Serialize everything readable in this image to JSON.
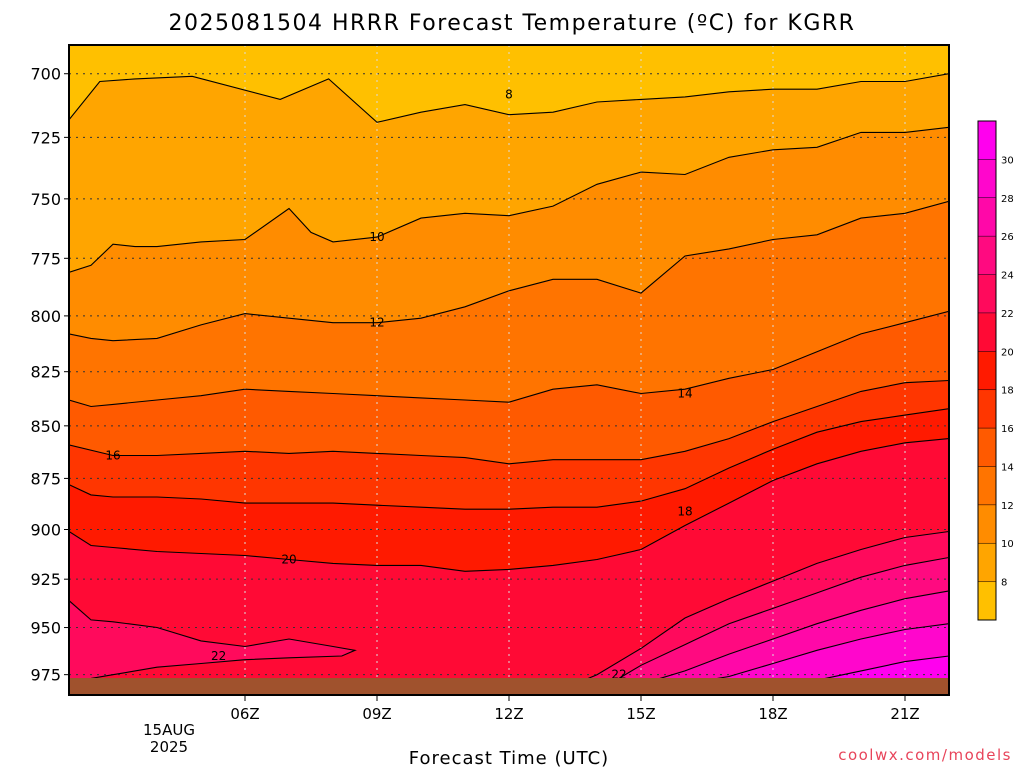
{
  "chart_data": {
    "type": "contour",
    "title": "2025081504 HRRR Forecast Temperature (ºC) for KGRR",
    "xlabel": "Forecast Time (UTC)",
    "ylabel": "",
    "credit": "coolwx.com/models",
    "x_range_hours_utc": [
      2,
      22
    ],
    "y_range_hpa": [
      689,
      986
    ],
    "y_axis": "pressure (hPa), inverted, log-p",
    "grid": "dotted",
    "y_ticks": [
      700,
      725,
      750,
      775,
      800,
      825,
      850,
      875,
      900,
      925,
      950,
      975
    ],
    "x_ticks": [
      {
        "hour": 6,
        "label": "06Z"
      },
      {
        "hour": 9,
        "label": "09Z"
      },
      {
        "hour": 12,
        "label": "12Z"
      },
      {
        "hour": 15,
        "label": "15Z"
      },
      {
        "hour": 18,
        "label": "18Z"
      },
      {
        "hour": 21,
        "label": "21Z"
      }
    ],
    "date_label": [
      "15AUG",
      "2025"
    ],
    "colorbar": {
      "levels": [
        8,
        10,
        12,
        14,
        16,
        18,
        20,
        22,
        24,
        26,
        28,
        30
      ],
      "colors": [
        "#ffc000",
        "#ffa500",
        "#ff8c00",
        "#ff7400",
        "#ff5a00",
        "#ff3600",
        "#ff1a00",
        "#ff0a35",
        "#ff0a5c",
        "#ff0a80",
        "#ff08a8",
        "#ff06cc",
        "#ff00ee"
      ]
    },
    "ground_color": "#a0522d",
    "contours": [
      {
        "value": 8,
        "label_at": [
          12.0,
          708
        ],
        "points": [
          [
            2,
            718
          ],
          [
            2.7,
            703
          ],
          [
            3.5,
            702
          ],
          [
            4.8,
            701
          ],
          [
            6.8,
            710
          ],
          [
            7.9,
            702
          ],
          [
            9.0,
            719
          ],
          [
            10.0,
            715
          ],
          [
            11.0,
            712
          ],
          [
            12.0,
            716
          ],
          [
            13.0,
            715
          ],
          [
            14.0,
            711
          ],
          [
            15.0,
            710
          ],
          [
            16.0,
            709
          ],
          [
            17.0,
            707
          ],
          [
            18.0,
            706
          ],
          [
            19.0,
            706
          ],
          [
            20.0,
            703
          ],
          [
            21.0,
            703
          ],
          [
            22,
            700
          ]
        ]
      },
      {
        "value": 10,
        "label_at": [
          9.0,
          766
        ],
        "points": [
          [
            2,
            781
          ],
          [
            2.5,
            778
          ],
          [
            3,
            769
          ],
          [
            3.5,
            770
          ],
          [
            4,
            770
          ],
          [
            5,
            768
          ],
          [
            6,
            767
          ],
          [
            7,
            754
          ],
          [
            7.5,
            764
          ],
          [
            8,
            768
          ],
          [
            9,
            766
          ],
          [
            10,
            758
          ],
          [
            11,
            756
          ],
          [
            12,
            757
          ],
          [
            13,
            753
          ],
          [
            14,
            744
          ],
          [
            15,
            739
          ],
          [
            16,
            740
          ],
          [
            17,
            733
          ],
          [
            18,
            730
          ],
          [
            19,
            729
          ],
          [
            20,
            723
          ],
          [
            21,
            723
          ],
          [
            22,
            721
          ]
        ]
      },
      {
        "value": 12,
        "label_at": [
          9.0,
          803
        ],
        "points": [
          [
            2,
            808
          ],
          [
            2.5,
            810
          ],
          [
            3,
            811
          ],
          [
            4,
            810
          ],
          [
            5,
            804
          ],
          [
            6,
            799
          ],
          [
            7,
            801
          ],
          [
            8,
            803
          ],
          [
            9,
            803
          ],
          [
            10,
            801
          ],
          [
            11,
            796
          ],
          [
            12,
            789
          ],
          [
            13,
            784
          ],
          [
            14,
            784
          ],
          [
            15,
            790
          ],
          [
            16,
            774
          ],
          [
            17,
            771
          ],
          [
            18,
            767
          ],
          [
            19,
            765
          ],
          [
            20,
            758
          ],
          [
            21,
            756
          ],
          [
            22,
            751
          ]
        ]
      },
      {
        "value": 14,
        "label_at": [
          16.0,
          835
        ],
        "points": [
          [
            2,
            838
          ],
          [
            2.5,
            841
          ],
          [
            3,
            840
          ],
          [
            4,
            838
          ],
          [
            5,
            836
          ],
          [
            6,
            833
          ],
          [
            7,
            834
          ],
          [
            8,
            835
          ],
          [
            9,
            836
          ],
          [
            10,
            837
          ],
          [
            11,
            838
          ],
          [
            12,
            839
          ],
          [
            13,
            833
          ],
          [
            14,
            831
          ],
          [
            15,
            835
          ],
          [
            16,
            833
          ],
          [
            17,
            828
          ],
          [
            18,
            824
          ],
          [
            19,
            816
          ],
          [
            20,
            808
          ],
          [
            21,
            803
          ],
          [
            22,
            798
          ]
        ]
      },
      {
        "value": 16,
        "label_at": [
          3.0,
          864
        ],
        "points": [
          [
            2,
            859
          ],
          [
            3,
            864
          ],
          [
            4,
            864
          ],
          [
            5,
            863
          ],
          [
            6,
            862
          ],
          [
            7,
            863
          ],
          [
            8,
            862
          ],
          [
            9,
            863
          ],
          [
            10,
            864
          ],
          [
            11,
            865
          ],
          [
            12,
            868
          ],
          [
            13,
            866
          ],
          [
            14,
            866
          ],
          [
            15,
            866
          ],
          [
            16,
            862
          ],
          [
            17,
            856
          ],
          [
            18,
            848
          ],
          [
            19,
            841
          ],
          [
            20,
            834
          ],
          [
            21,
            830
          ],
          [
            22,
            829
          ]
        ]
      },
      {
        "value": 18,
        "label_at": [
          16.0,
          891
        ],
        "points": [
          [
            2,
            878
          ],
          [
            2.5,
            883
          ],
          [
            3,
            884
          ],
          [
            4,
            884
          ],
          [
            5,
            885
          ],
          [
            6,
            887
          ],
          [
            7,
            887
          ],
          [
            8,
            887
          ],
          [
            9,
            888
          ],
          [
            10,
            889
          ],
          [
            11,
            890
          ],
          [
            12,
            890
          ],
          [
            13,
            889
          ],
          [
            14,
            889
          ],
          [
            15,
            886
          ],
          [
            16,
            880
          ],
          [
            17,
            870
          ],
          [
            18,
            861
          ],
          [
            19,
            853
          ],
          [
            20,
            848
          ],
          [
            21,
            845
          ],
          [
            22,
            842
          ]
        ]
      },
      {
        "value": 20,
        "label_at": [
          7.0,
          915
        ],
        "points": [
          [
            2,
            901
          ],
          [
            2.5,
            908
          ],
          [
            3,
            909
          ],
          [
            4,
            911
          ],
          [
            5,
            912
          ],
          [
            6,
            913
          ],
          [
            7,
            915
          ],
          [
            8,
            917
          ],
          [
            9,
            918
          ],
          [
            10,
            918
          ],
          [
            11,
            921
          ],
          [
            12,
            920
          ],
          [
            13,
            918
          ],
          [
            14,
            915
          ],
          [
            15,
            910
          ],
          [
            16,
            898
          ],
          [
            17,
            887
          ],
          [
            18,
            876
          ],
          [
            19,
            868
          ],
          [
            20,
            862
          ],
          [
            21,
            858
          ],
          [
            22,
            856
          ]
        ]
      },
      {
        "value": 22,
        "label_at": [
          5.4,
          965
        ],
        "points": [
          [
            2,
            936
          ],
          [
            2.5,
            946
          ],
          [
            3,
            947
          ],
          [
            4,
            950
          ],
          [
            5,
            957
          ],
          [
            6,
            960
          ],
          [
            7,
            956
          ],
          [
            8,
            960
          ],
          [
            8.5,
            962
          ],
          [
            8.2,
            965
          ],
          [
            7,
            966
          ],
          [
            6,
            967
          ],
          [
            5,
            969
          ],
          [
            4,
            971
          ],
          [
            3,
            975
          ],
          [
            2.5,
            977
          ]
        ]
      },
      {
        "value": 24,
        "points": [
          [
            6,
            982
          ],
          [
            7,
            978
          ],
          [
            7.5,
            978
          ],
          [
            8,
            982
          ]
        ]
      },
      {
        "value": 22,
        "label_at": [
          14.5,
          975
        ],
        "points": [
          [
            13.1,
            984
          ],
          [
            14,
            975
          ],
          [
            15,
            961
          ],
          [
            16,
            945
          ],
          [
            17,
            935
          ],
          [
            18,
            926
          ],
          [
            19,
            917
          ],
          [
            20,
            910
          ],
          [
            21,
            904
          ],
          [
            22,
            901
          ]
        ]
      },
      {
        "value": 24,
        "points": [
          [
            13.9,
            984
          ],
          [
            14.5,
            977
          ],
          [
            15,
            970
          ],
          [
            16,
            959
          ],
          [
            17,
            948
          ],
          [
            18,
            940
          ],
          [
            19,
            932
          ],
          [
            20,
            924
          ],
          [
            21,
            918
          ],
          [
            22,
            914
          ]
        ]
      },
      {
        "value": 26,
        "points": [
          [
            14.6,
            984
          ],
          [
            15.3,
            978
          ],
          [
            16,
            973
          ],
          [
            17,
            964
          ],
          [
            18,
            956
          ],
          [
            19,
            948
          ],
          [
            20,
            941
          ],
          [
            21,
            935
          ],
          [
            22,
            931
          ]
        ]
      },
      {
        "value": 28,
        "points": [
          [
            15.8,
            984
          ],
          [
            16.5,
            978
          ],
          [
            17,
            976
          ],
          [
            18,
            969
          ],
          [
            19,
            962
          ],
          [
            20,
            956
          ],
          [
            21,
            951
          ],
          [
            22,
            948
          ]
        ]
      },
      {
        "value": 30,
        "points": [
          [
            17.5,
            984
          ],
          [
            18,
            981
          ],
          [
            19,
            978
          ],
          [
            20,
            973
          ],
          [
            21,
            968
          ],
          [
            22,
            965
          ]
        ]
      }
    ]
  }
}
